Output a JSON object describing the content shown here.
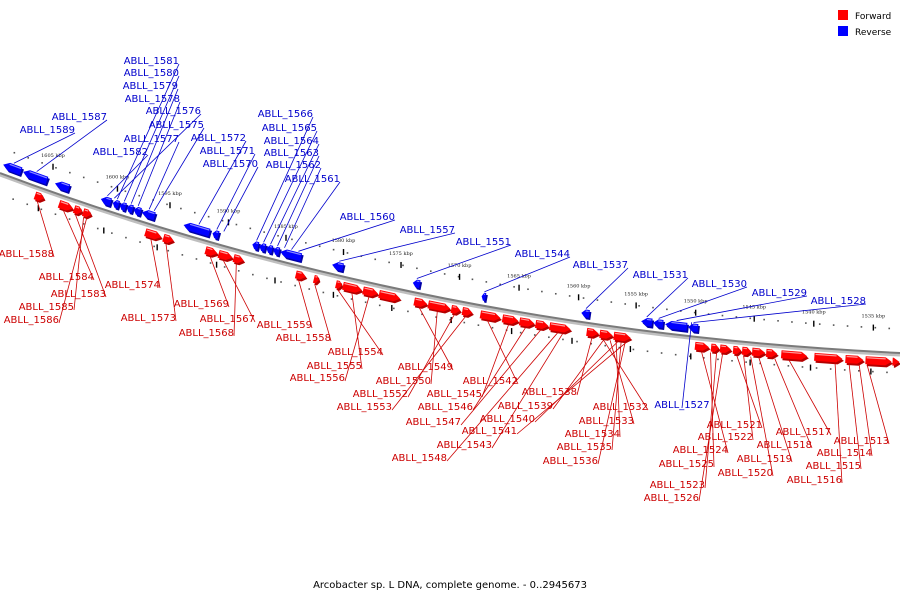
{
  "caption": "Arcobacter sp. L DNA, complete genome. - 0..2945673",
  "legend": [
    {
      "label": "Forward",
      "color": "#ff0000"
    },
    {
      "label": "Reverse",
      "color": "#0000ff"
    }
  ],
  "colors": {
    "forward": "#ff0000",
    "forward_dark": "#b40000",
    "forward_light": "#ff9a9a",
    "reverse": "#0000ff",
    "reverse_dark": "#0000a8",
    "reverse_light": "#8a8aff",
    "forward_text": "#cc0000",
    "reverse_text": "#0000cc"
  },
  "kbp_labels": [
    "1605 kbp",
    "1600 kbp",
    "1595 kbp",
    "1590 kbp",
    "1585 kbp",
    "1580 kbp",
    "1575 kbp",
    "1570 kbp",
    "1565 kbp",
    "1560 kbp",
    "1555 kbp",
    "1550 kbp",
    "1545 kbp",
    "1540 kbp",
    "1535 kbp"
  ],
  "reverse_genes": [
    "ABLL_1589",
    "ABLL_1587",
    "ABLL_1582",
    "ABLL_1581",
    "ABLL_1580",
    "ABLL_1579",
    "ABLL_1578",
    "ABLL_1577",
    "ABLL_1576",
    "ABLL_1575",
    "ABLL_1572",
    "ABLL_1571",
    "ABLL_1570",
    "ABLL_1566",
    "ABLL_1565",
    "ABLL_1564",
    "ABLL_1563",
    "ABLL_1562",
    "ABLL_1561",
    "ABLL_1560",
    "ABLL_1557",
    "ABLL_1551",
    "ABLL_1544",
    "ABLL_1537",
    "ABLL_1531",
    "ABLL_1530",
    "ABLL_1529",
    "ABLL_1528",
    "ABLL_1527"
  ],
  "forward_genes": [
    "ABLL_1588",
    "ABLL_1584",
    "ABLL_1583",
    "ABLL_1585",
    "ABLL_1586",
    "ABLL_1574",
    "ABLL_1573",
    "ABLL_1569",
    "ABLL_1567",
    "ABLL_1568",
    "ABLL_1559",
    "ABLL_1558",
    "ABLL_1554",
    "ABLL_1555",
    "ABLL_1556",
    "ABLL_1549",
    "ABLL_1550",
    "ABLL_1552",
    "ABLL_1553",
    "ABLL_1542",
    "ABLL_1545",
    "ABLL_1546",
    "ABLL_1547",
    "ABLL_1548",
    "ABLL_1538",
    "ABLL_1539",
    "ABLL_1540",
    "ABLL_1541",
    "ABLL_1543",
    "ABLL_1532",
    "ABLL_1533",
    "ABLL_1534",
    "ABLL_1535",
    "ABLL_1536",
    "ABLL_1521",
    "ABLL_1522",
    "ABLL_1524",
    "ABLL_1525",
    "ABLL_1523",
    "ABLL_1526",
    "ABLL_1519",
    "ABLL_1520",
    "ABLL_1517",
    "ABLL_1518",
    "ABLL_1513",
    "ABLL_1514",
    "ABLL_1515",
    "ABLL_1516"
  ]
}
